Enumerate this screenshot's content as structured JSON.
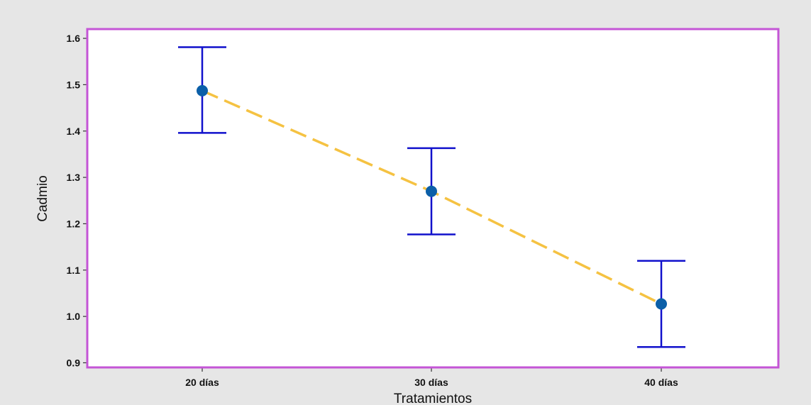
{
  "chart_data": {
    "type": "line",
    "subtype": "interval-plot-with-error-bars",
    "title": "",
    "xlabel": "Tratamientos",
    "ylabel": "Cadmio",
    "categories": [
      "20 días",
      "30 días",
      "40 días"
    ],
    "series": [
      {
        "values": [
          1.487,
          1.27,
          1.027
        ],
        "lower": [
          1.396,
          1.177,
          0.934
        ],
        "upper": [
          1.581,
          1.363,
          1.12
        ]
      }
    ],
    "ylim": [
      0.89,
      1.62
    ],
    "yticks": [
      0.9,
      1.0,
      1.1,
      1.2,
      1.3,
      1.4,
      1.5,
      1.6
    ],
    "ytick_labels": [
      "0.9",
      "1.0",
      "1.1",
      "1.2",
      "1.3",
      "1.4",
      "1.5",
      "1.6"
    ],
    "grid": false,
    "colors": {
      "background": "#e6e6e6",
      "plot_area": "#ffffff",
      "plot_border": "#c455d6",
      "error_bars": "#1111cc",
      "points": "#0b5fa8",
      "connect_line": "#f5c242"
    }
  }
}
